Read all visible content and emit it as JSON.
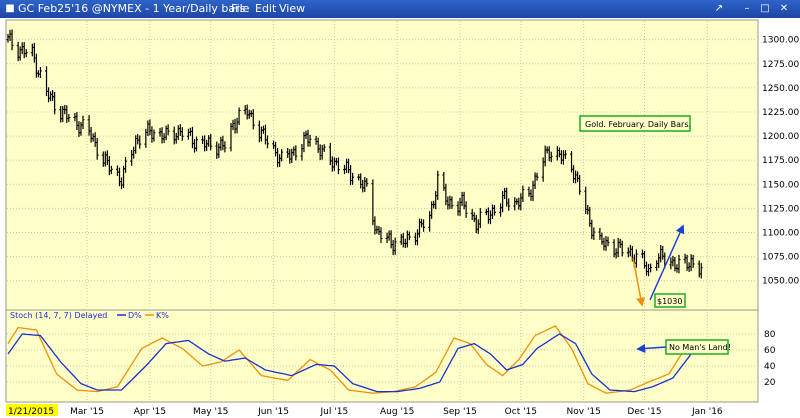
{
  "window": {
    "title": "GC Feb25'16 @NYMEX - 1 Year/Daily bars",
    "menus": [
      "File",
      "Edit",
      "View"
    ]
  },
  "chart_data": [
    {
      "type": "candlestick",
      "title": "Gold. February. Daily Bars.",
      "ylim": [
        1030,
        1310
      ],
      "yticks": [
        1050,
        1075,
        1100,
        1125,
        1150,
        1175,
        1200,
        1225,
        1250,
        1275,
        1300
      ],
      "xlim": [
        "2015-01-21",
        "2016-01-25"
      ],
      "xticks": [
        {
          "date": "2015-01-21",
          "label": "1/21/2015"
        },
        {
          "date": "2015-03-01",
          "label": "Mar '15"
        },
        {
          "date": "2015-04-01",
          "label": "Apr '15"
        },
        {
          "date": "2015-05-01",
          "label": "May '15"
        },
        {
          "date": "2015-06-01",
          "label": "Jun '15"
        },
        {
          "date": "2015-07-01",
          "label": "Jul '15"
        },
        {
          "date": "2015-08-01",
          "label": "Aug '15"
        },
        {
          "date": "2015-09-01",
          "label": "Sep '15"
        },
        {
          "date": "2015-10-01",
          "label": "Oct '15"
        },
        {
          "date": "2015-11-01",
          "label": "Nov '15"
        },
        {
          "date": "2015-12-01",
          "label": "Dec '15"
        },
        {
          "date": "2016-01-01",
          "label": "Jan '16"
        }
      ],
      "anchors": [
        [
          "2015-01-21",
          1300
        ],
        [
          "2015-01-26",
          1290
        ],
        [
          "2015-02-02",
          1285
        ],
        [
          "2015-02-09",
          1245
        ],
        [
          "2015-02-16",
          1225
        ],
        [
          "2015-02-23",
          1215
        ],
        [
          "2015-03-02",
          1205
        ],
        [
          "2015-03-09",
          1175
        ],
        [
          "2015-03-18",
          1155
        ],
        [
          "2015-03-25",
          1195
        ],
        [
          "2015-04-01",
          1205
        ],
        [
          "2015-04-09",
          1200
        ],
        [
          "2015-04-16",
          1205
        ],
        [
          "2015-04-23",
          1195
        ],
        [
          "2015-05-01",
          1190
        ],
        [
          "2015-05-08",
          1190
        ],
        [
          "2015-05-14",
          1220
        ],
        [
          "2015-05-19",
          1225
        ],
        [
          "2015-05-27",
          1200
        ],
        [
          "2015-06-05",
          1175
        ],
        [
          "2015-06-12",
          1185
        ],
        [
          "2015-06-19",
          1200
        ],
        [
          "2015-06-26",
          1180
        ],
        [
          "2015-07-03",
          1170
        ],
        [
          "2015-07-10",
          1160
        ],
        [
          "2015-07-17",
          1145
        ],
        [
          "2015-07-22",
          1100
        ],
        [
          "2015-07-29",
          1090
        ],
        [
          "2015-08-05",
          1090
        ],
        [
          "2015-08-10",
          1100
        ],
        [
          "2015-08-17",
          1115
        ],
        [
          "2015-08-21",
          1155
        ],
        [
          "2015-08-26",
          1130
        ],
        [
          "2015-09-02",
          1130
        ],
        [
          "2015-09-09",
          1110
        ],
        [
          "2015-09-16",
          1120
        ],
        [
          "2015-09-23",
          1135
        ],
        [
          "2015-09-28",
          1130
        ],
        [
          "2015-10-05",
          1140
        ],
        [
          "2015-10-12",
          1175
        ],
        [
          "2015-10-15",
          1185
        ],
        [
          "2015-10-20",
          1180
        ],
        [
          "2015-10-26",
          1170
        ],
        [
          "2015-10-30",
          1145
        ],
        [
          "2015-11-04",
          1110
        ],
        [
          "2015-11-09",
          1090
        ],
        [
          "2015-11-16",
          1085
        ],
        [
          "2015-11-23",
          1080
        ],
        [
          "2015-11-30",
          1070
        ],
        [
          "2015-12-03",
          1060
        ],
        [
          "2015-12-07",
          1075
        ],
        [
          "2015-12-14",
          1070
        ],
        [
          "2015-12-18",
          1065
        ],
        [
          "2015-12-24",
          1070
        ],
        [
          "2015-12-29",
          1060
        ]
      ],
      "annotations": [
        {
          "text": "Gold. February. Daily Bars."
        },
        {
          "text": "$1030",
          "value": 1030
        }
      ]
    },
    {
      "type": "line",
      "title": "Stoch (14, 7, 7) Delayed",
      "legend": [
        "D%",
        "K%"
      ],
      "ylim": [
        0,
        100
      ],
      "yticks": [
        20,
        40,
        60,
        80
      ],
      "series": [
        {
          "name": "D%",
          "color": "#1c2fd0",
          "anchors": [
            [
              "2015-01-21",
              55
            ],
            [
              "2015-01-28",
              80
            ],
            [
              "2015-02-06",
              78
            ],
            [
              "2015-02-16",
              45
            ],
            [
              "2015-02-26",
              18
            ],
            [
              "2015-03-06",
              10
            ],
            [
              "2015-03-18",
              10
            ],
            [
              "2015-03-30",
              40
            ],
            [
              "2015-04-09",
              68
            ],
            [
              "2015-04-20",
              72
            ],
            [
              "2015-04-30",
              55
            ],
            [
              "2015-05-08",
              46
            ],
            [
              "2015-05-18",
              50
            ],
            [
              "2015-05-28",
              35
            ],
            [
              "2015-06-10",
              28
            ],
            [
              "2015-06-22",
              42
            ],
            [
              "2015-07-01",
              40
            ],
            [
              "2015-07-10",
              18
            ],
            [
              "2015-07-22",
              8
            ],
            [
              "2015-08-01",
              8
            ],
            [
              "2015-08-12",
              12
            ],
            [
              "2015-08-22",
              20
            ],
            [
              "2015-08-31",
              62
            ],
            [
              "2015-09-08",
              68
            ],
            [
              "2015-09-16",
              55
            ],
            [
              "2015-09-24",
              35
            ],
            [
              "2015-10-02",
              42
            ],
            [
              "2015-10-09",
              62
            ],
            [
              "2015-10-20",
              80
            ],
            [
              "2015-10-28",
              68
            ],
            [
              "2015-11-05",
              30
            ],
            [
              "2015-11-14",
              10
            ],
            [
              "2015-11-26",
              8
            ],
            [
              "2015-12-05",
              14
            ],
            [
              "2015-12-15",
              25
            ],
            [
              "2015-12-24",
              55
            ],
            [
              "2015-12-29",
              58
            ]
          ]
        },
        {
          "name": "K%",
          "color": "#f0900a",
          "anchors": [
            [
              "2015-01-21",
              68
            ],
            [
              "2015-01-26",
              88
            ],
            [
              "2015-02-04",
              85
            ],
            [
              "2015-02-14",
              30
            ],
            [
              "2015-02-24",
              10
            ],
            [
              "2015-03-06",
              8
            ],
            [
              "2015-03-16",
              14
            ],
            [
              "2015-03-28",
              62
            ],
            [
              "2015-04-07",
              75
            ],
            [
              "2015-04-17",
              62
            ],
            [
              "2015-04-27",
              40
            ],
            [
              "2015-05-06",
              45
            ],
            [
              "2015-05-15",
              60
            ],
            [
              "2015-05-26",
              28
            ],
            [
              "2015-06-08",
              22
            ],
            [
              "2015-06-19",
              48
            ],
            [
              "2015-06-29",
              35
            ],
            [
              "2015-07-08",
              10
            ],
            [
              "2015-07-20",
              6
            ],
            [
              "2015-07-30",
              8
            ],
            [
              "2015-08-10",
              14
            ],
            [
              "2015-08-20",
              32
            ],
            [
              "2015-08-29",
              75
            ],
            [
              "2015-09-06",
              68
            ],
            [
              "2015-09-14",
              42
            ],
            [
              "2015-09-22",
              28
            ],
            [
              "2015-09-30",
              48
            ],
            [
              "2015-10-08",
              78
            ],
            [
              "2015-10-18",
              90
            ],
            [
              "2015-10-26",
              62
            ],
            [
              "2015-11-03",
              18
            ],
            [
              "2015-11-12",
              6
            ],
            [
              "2015-11-24",
              10
            ],
            [
              "2015-12-03",
              20
            ],
            [
              "2015-12-13",
              30
            ],
            [
              "2015-12-23",
              70
            ],
            [
              "2015-12-29",
              63
            ]
          ]
        }
      ],
      "annotations": [
        {
          "text": "No Man's Land!"
        }
      ]
    }
  ],
  "colors": {
    "plot_bg": "#ffffc8",
    "grid": "#c8c8b4",
    "label_box_border": "#22aa22",
    "arrow_blue": "#1c3fd6",
    "arrow_orange": "#f0900a"
  }
}
